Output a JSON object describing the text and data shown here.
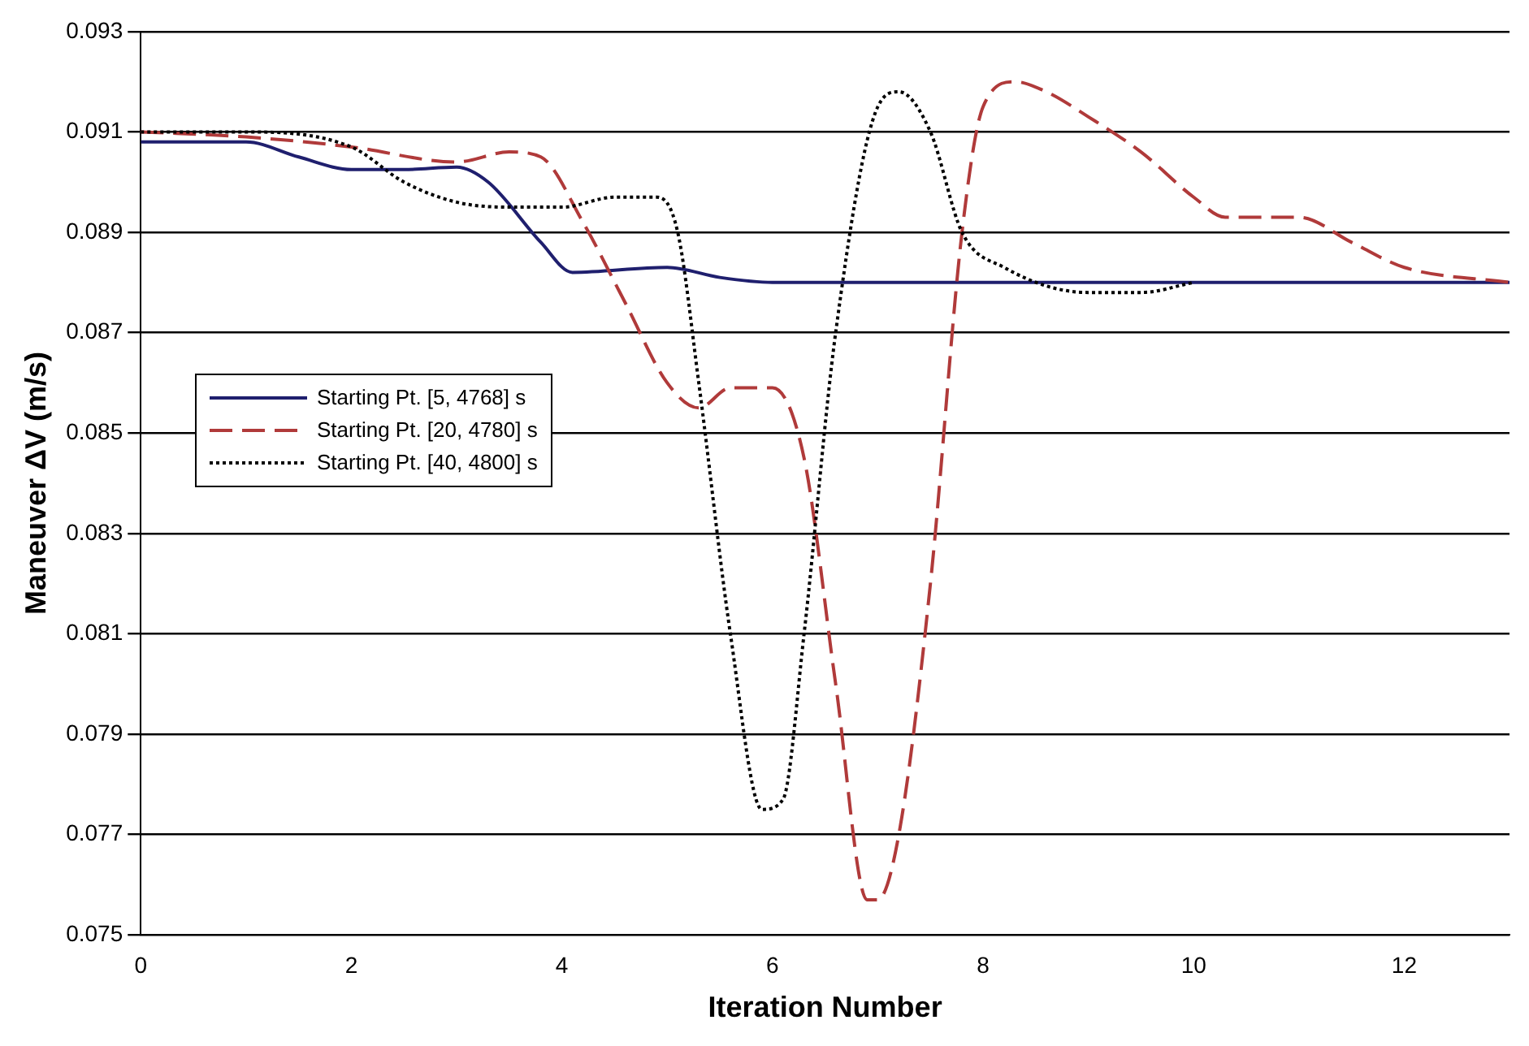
{
  "chart_data": {
    "type": "line",
    "xlabel": "Iteration Number",
    "ylabel": "Maneuver ΔV (m/s)",
    "xlim": [
      0,
      13
    ],
    "xticks": [
      0,
      2,
      4,
      6,
      8,
      10,
      12
    ],
    "ylim": [
      0.075,
      0.093
    ],
    "yticks": [
      0.075,
      0.077,
      0.079,
      0.081,
      0.083,
      0.085,
      0.087,
      0.089,
      0.091,
      0.093
    ],
    "grid": "y",
    "legend": "left",
    "marker": "none",
    "series": [
      {
        "name": "Starting Pt. [5, 4768] s",
        "color": "#1f1f6e",
        "line_style": "solid",
        "x": [
          0,
          1,
          1.5,
          2,
          2.5,
          3,
          3.3,
          3.8,
          4.1,
          5,
          5.5,
          6,
          13
        ],
        "values": [
          0.0908,
          0.0908,
          0.0905,
          0.09025,
          0.09025,
          0.0903,
          0.09,
          0.0888,
          0.0882,
          0.0883,
          0.0881,
          0.088,
          0.088
        ]
      },
      {
        "name": "Starting Pt. [20, 4780] s",
        "color": "#b03a3a",
        "line_style": "dashed",
        "x": [
          0,
          1,
          2,
          3,
          3.5,
          3.8,
          4.2,
          4.6,
          5,
          5.3,
          5.6,
          6,
          6.3,
          6.6,
          6.9,
          7,
          7.2,
          7.5,
          7.8,
          8,
          8.3,
          8.6,
          9,
          9.5,
          10,
          10.3,
          11,
          11.5,
          12,
          13
        ],
        "values": [
          0.091,
          0.0909,
          0.0907,
          0.0904,
          0.0906,
          0.0905,
          0.0892,
          0.0876,
          0.086,
          0.0855,
          0.0859,
          0.0859,
          0.0845,
          0.08,
          0.0757,
          0.0757,
          0.077,
          0.082,
          0.089,
          0.0915,
          0.092,
          0.0918,
          0.0913,
          0.0906,
          0.0897,
          0.0893,
          0.0893,
          0.0888,
          0.0883,
          0.088
        ]
      },
      {
        "name": "Starting Pt. [40, 4800] s",
        "color": "#000000",
        "line_style": "dotted",
        "x": [
          0,
          1,
          2,
          2.5,
          3,
          3.5,
          4,
          4.5,
          4.9,
          5.1,
          5.3,
          5.6,
          5.9,
          6.1,
          6.3,
          6.6,
          7,
          7.2,
          7.5,
          7.8,
          8.2,
          9,
          9.5,
          10
        ],
        "values": [
          0.091,
          0.091,
          0.0907,
          0.09,
          0.0896,
          0.0895,
          0.0895,
          0.0897,
          0.0897,
          0.089,
          0.086,
          0.081,
          0.0775,
          0.0777,
          0.081,
          0.087,
          0.0915,
          0.0918,
          0.091,
          0.089,
          0.0883,
          0.0878,
          0.0878,
          0.088
        ]
      }
    ]
  }
}
